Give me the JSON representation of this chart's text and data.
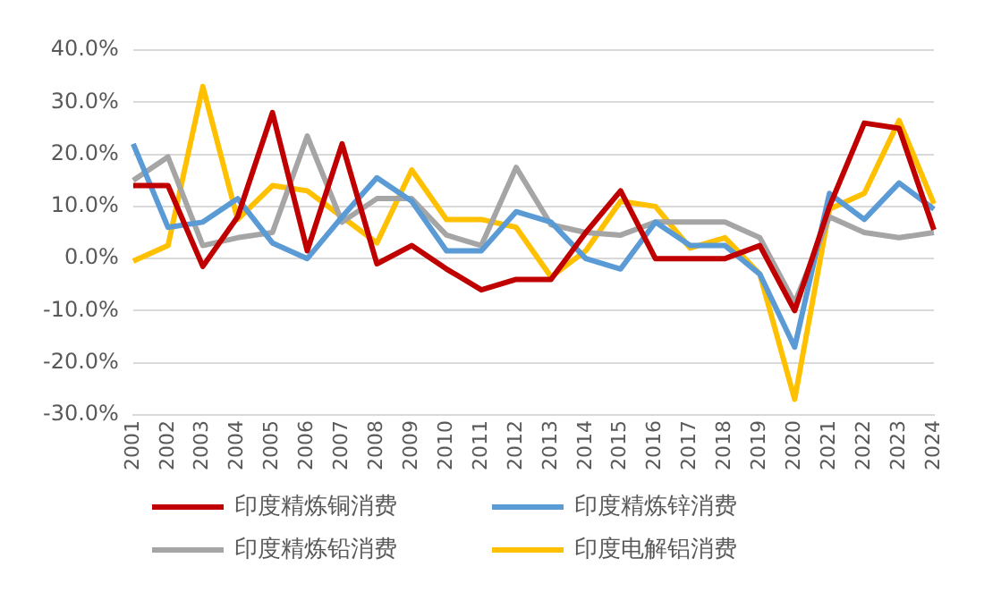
{
  "chart_data": {
    "type": "line",
    "categories": [
      "2001",
      "2002",
      "2003",
      "2004",
      "2005",
      "2006",
      "2007",
      "2008",
      "2009",
      "2010",
      "2011",
      "2012",
      "2013",
      "2014",
      "2015",
      "2016",
      "2017",
      "2018",
      "2019",
      "2020",
      "2021",
      "2022",
      "2023",
      "2024"
    ],
    "series": [
      {
        "name": "印度精炼铜消费",
        "color": "#c00000",
        "values": [
          14,
          14,
          -1.5,
          8,
          28,
          1.5,
          22,
          -1,
          2.5,
          -2,
          -6,
          -4,
          -4,
          5,
          13,
          0,
          0,
          0,
          2.5,
          -10,
          10,
          26,
          25,
          5.5
        ]
      },
      {
        "name": "印度精炼锌消费",
        "color": "#5b9bd5",
        "values": [
          22,
          6,
          7,
          11.5,
          3,
          0,
          8,
          15.5,
          11,
          1.5,
          1.5,
          9,
          7,
          0,
          -2,
          7,
          2.5,
          2.5,
          -3,
          -17,
          12.5,
          7.5,
          14.5,
          9.5
        ]
      },
      {
        "name": "印度精炼铅消费",
        "color": "#a5a5a5",
        "values": [
          15,
          19.5,
          2.5,
          4,
          5,
          23.5,
          7,
          11.5,
          11.5,
          4.5,
          2.5,
          17.5,
          6.5,
          5,
          4.5,
          7,
          7,
          7,
          4,
          -8.5,
          8,
          5,
          4,
          5
        ]
      },
      {
        "name": "印度电解铝消费",
        "color": "#ffc000",
        "values": [
          -0.5,
          2.5,
          33,
          7.5,
          14,
          13,
          8,
          3,
          17,
          7.5,
          7.5,
          6,
          -3.5,
          1.5,
          11,
          10,
          2,
          4,
          -3,
          -27,
          9.5,
          12.5,
          26.5,
          10.5
        ]
      }
    ],
    "ylim": [
      -30,
      40
    ],
    "yticks": [
      {
        "value": -30,
        "label": "-30.0%"
      },
      {
        "value": -20,
        "label": "-20.0%"
      },
      {
        "value": -10,
        "label": "-10.0%"
      },
      {
        "value": 0,
        "label": "0.0%"
      },
      {
        "value": 10,
        "label": "10.0%"
      },
      {
        "value": 20,
        "label": "20.0%"
      },
      {
        "value": 30,
        "label": "30.0%"
      },
      {
        "value": 40,
        "label": "40.0%"
      }
    ],
    "grid": "y",
    "legend": "bottom",
    "marker": "none",
    "line_style": "solid"
  }
}
